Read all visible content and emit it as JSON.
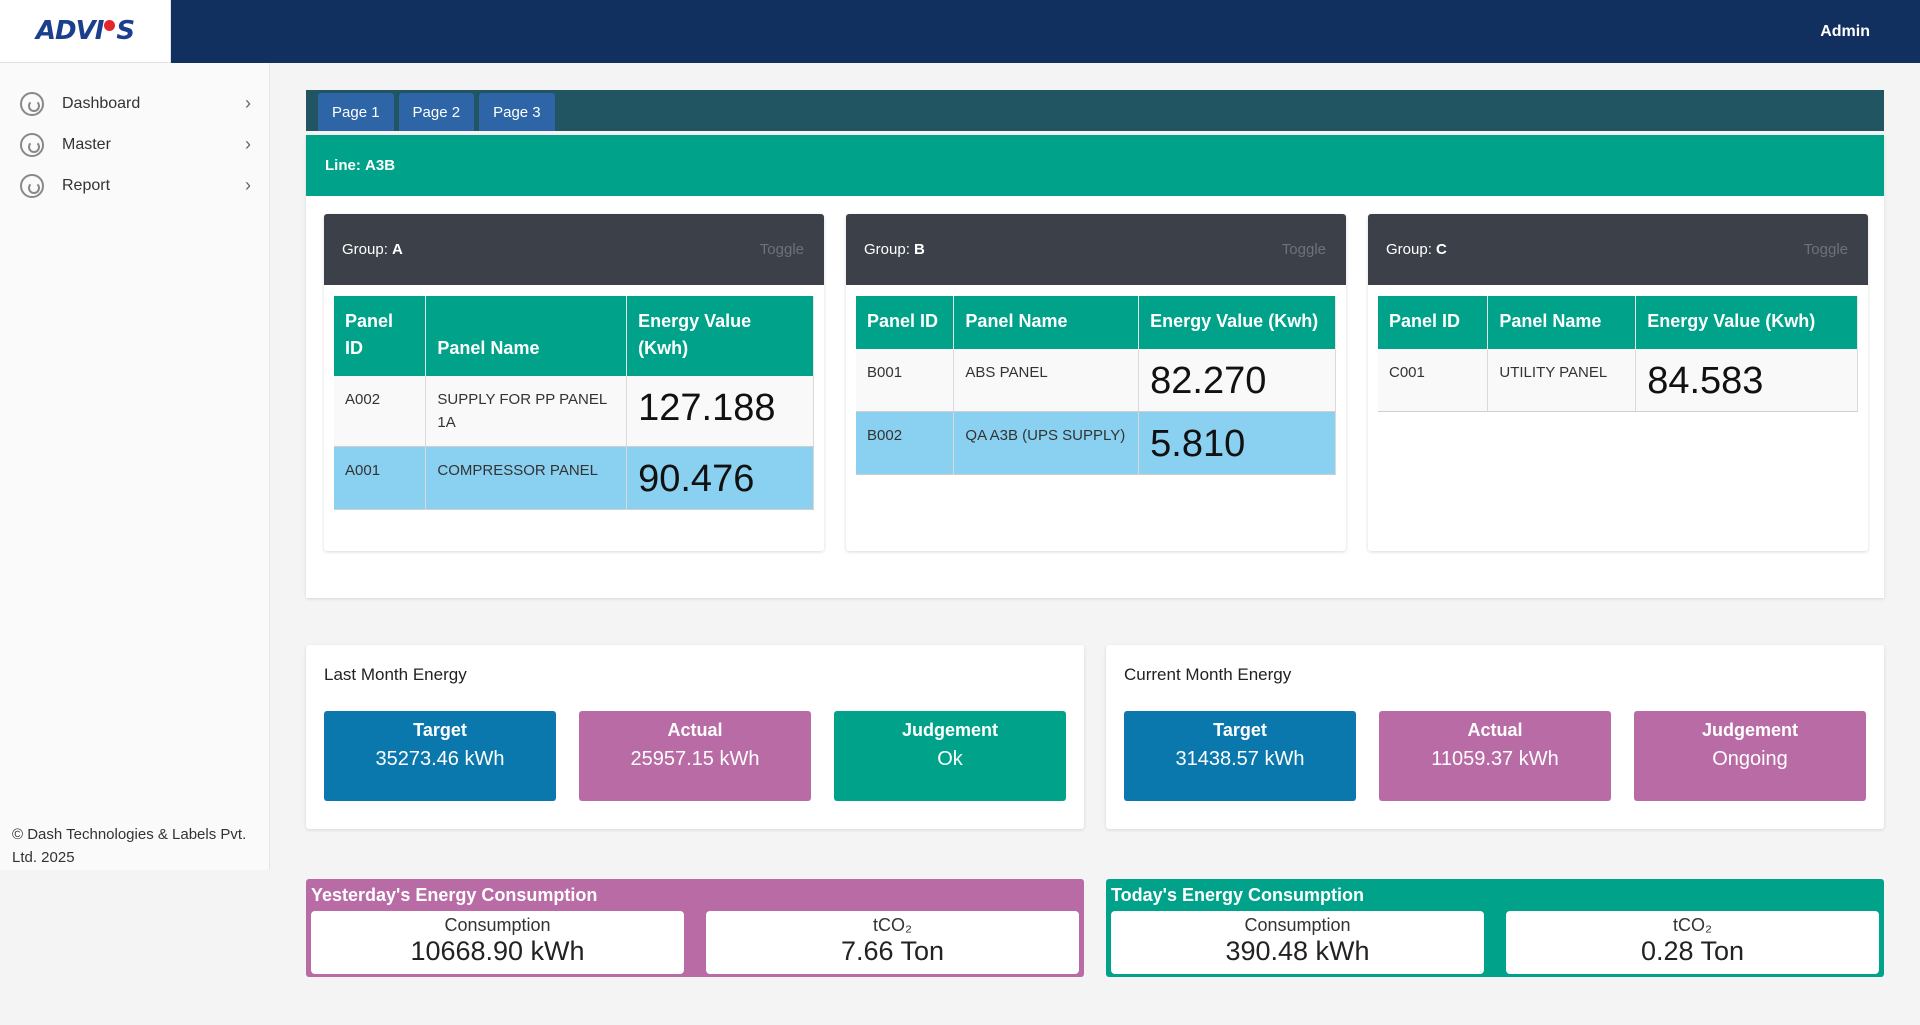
{
  "app": {
    "logo_text": "ADVIOS",
    "user": "Admin"
  },
  "sidebar": {
    "items": [
      {
        "label": "Dashboard",
        "icon": "dashboard-icon"
      },
      {
        "label": "Master",
        "icon": "master-icon"
      },
      {
        "label": "Report",
        "icon": "report-icon"
      }
    ],
    "footer": "© Dash Technologies & Labels Pvt. Ltd. 2025"
  },
  "tabs": [
    "Page 1",
    "Page 2",
    "Page 3"
  ],
  "line": {
    "prefix": "Line:",
    "name": "A3B"
  },
  "toggle_label": "Toggle",
  "table_headers": {
    "id": "Panel ID",
    "name": "Panel Name",
    "energy": "Energy Value (Kwh)"
  },
  "groups": [
    {
      "prefix": "Group:",
      "name": "A",
      "rows": [
        {
          "id": "A002",
          "name": "SUPPLY FOR PP PANEL 1A",
          "energy": "127.188"
        },
        {
          "id": "A001",
          "name": "COMPRESSOR PANEL",
          "energy": "90.476"
        }
      ]
    },
    {
      "prefix": "Group:",
      "name": "B",
      "rows": [
        {
          "id": "B001",
          "name": "ABS PANEL",
          "energy": "82.270"
        },
        {
          "id": "B002",
          "name": "QA A3B (UPS SUPPLY)",
          "energy": "5.810"
        }
      ]
    },
    {
      "prefix": "Group:",
      "name": "C",
      "rows": [
        {
          "id": "C001",
          "name": "UTILITY PANEL",
          "energy": "84.583"
        }
      ]
    }
  ],
  "last_month": {
    "title": "Last Month Energy",
    "target": {
      "label": "Target",
      "value": "35273.46 kWh"
    },
    "actual": {
      "label": "Actual",
      "value": "25957.15 kWh"
    },
    "judgement": {
      "label": "Judgement",
      "value": "Ok"
    }
  },
  "current_month": {
    "title": "Current Month Energy",
    "target": {
      "label": "Target",
      "value": "31438.57 kWh"
    },
    "actual": {
      "label": "Actual",
      "value": "11059.37 kWh"
    },
    "judgement": {
      "label": "Judgement",
      "value": "Ongoing"
    }
  },
  "yesterday": {
    "title": "Yesterday's Energy Consumption",
    "consumption": {
      "label": "Consumption",
      "value": "10668.90 kWh"
    },
    "tco2": {
      "label": "tCO₂",
      "value": "7.66 Ton"
    }
  },
  "today": {
    "title": "Today's Energy Consumption",
    "consumption": {
      "label": "Consumption",
      "value": "390.48 kWh"
    },
    "tco2": {
      "label": "tCO₂",
      "value": "0.28 Ton"
    }
  },
  "colors": {
    "navy": "#12305f",
    "teal": "#00a38a",
    "dark_teal": "#225562",
    "blue": "#0a78ad",
    "pink": "#b86ba4",
    "highlight": "#8ad0f0"
  }
}
